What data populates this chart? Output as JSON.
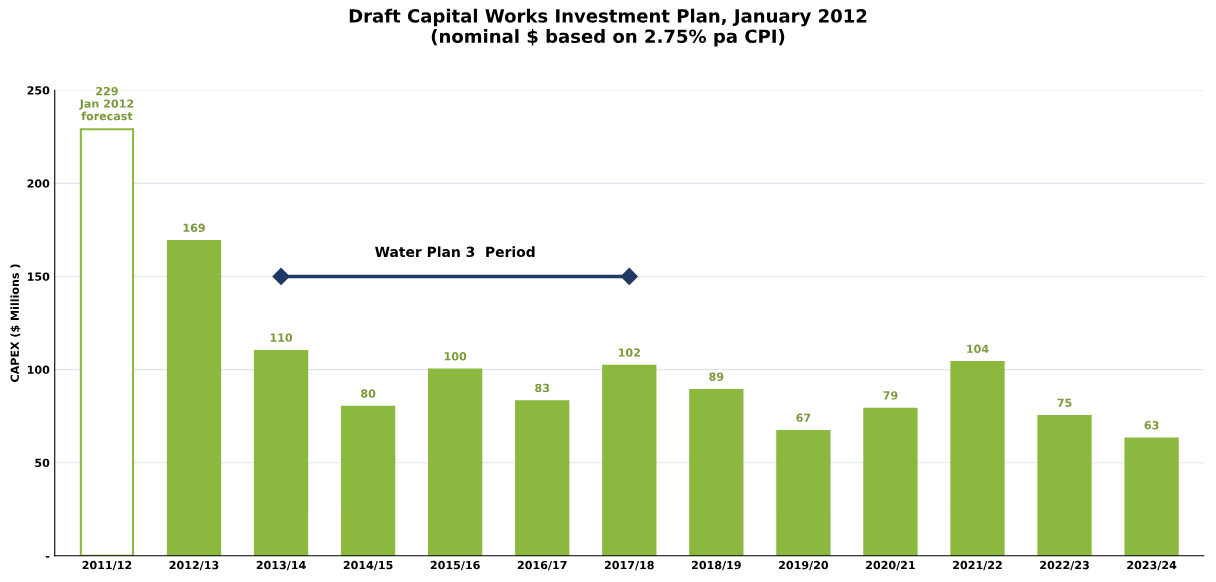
{
  "chart_data": {
    "type": "bar",
    "title": "Draft Capital Works Investment Plan, January 2012\n(nominal $ based on 2.75% pa CPI)",
    "ylabel": "CAPEX ($ Millions )",
    "categories": [
      "2011/12",
      "2012/13",
      "2013/14",
      "2014/15",
      "2015/16",
      "2016/17",
      "2017/18",
      "2018/19",
      "2019/20",
      "2020/21",
      "2021/22",
      "2022/23",
      "2023/24"
    ],
    "series": [
      {
        "values": [
          229,
          169,
          110,
          80,
          100,
          83,
          102,
          89,
          67,
          79,
          104,
          75,
          63
        ],
        "colors": [
          "#ffffff",
          "#8db83f",
          "#8db83f",
          "#8db83f",
          "#8db83f",
          "#8db83f",
          "#8db83f",
          "#8db83f",
          "#8db83f",
          "#8db83f",
          "#8db83f",
          "#8db83f",
          "#8db83f"
        ],
        "value_labels": [
          "229\nJan 2012\nforecast",
          "169",
          "110",
          "80",
          "100",
          "83",
          "102",
          "89",
          "67",
          "79",
          "104",
          "75",
          "63"
        ]
      },
      {
        "type": "line",
        "name": "Water Plan 3  Period",
        "x": [
          "2013/14",
          "2017/18"
        ],
        "values": [
          150,
          150
        ],
        "color": "#1f3864",
        "marker": "diamond"
      }
    ],
    "ylim": [
      0,
      250
    ],
    "yticks": [
      {
        "value": 0,
        "label": "-"
      },
      50,
      100,
      150,
      200,
      250
    ],
    "grid": "y"
  }
}
